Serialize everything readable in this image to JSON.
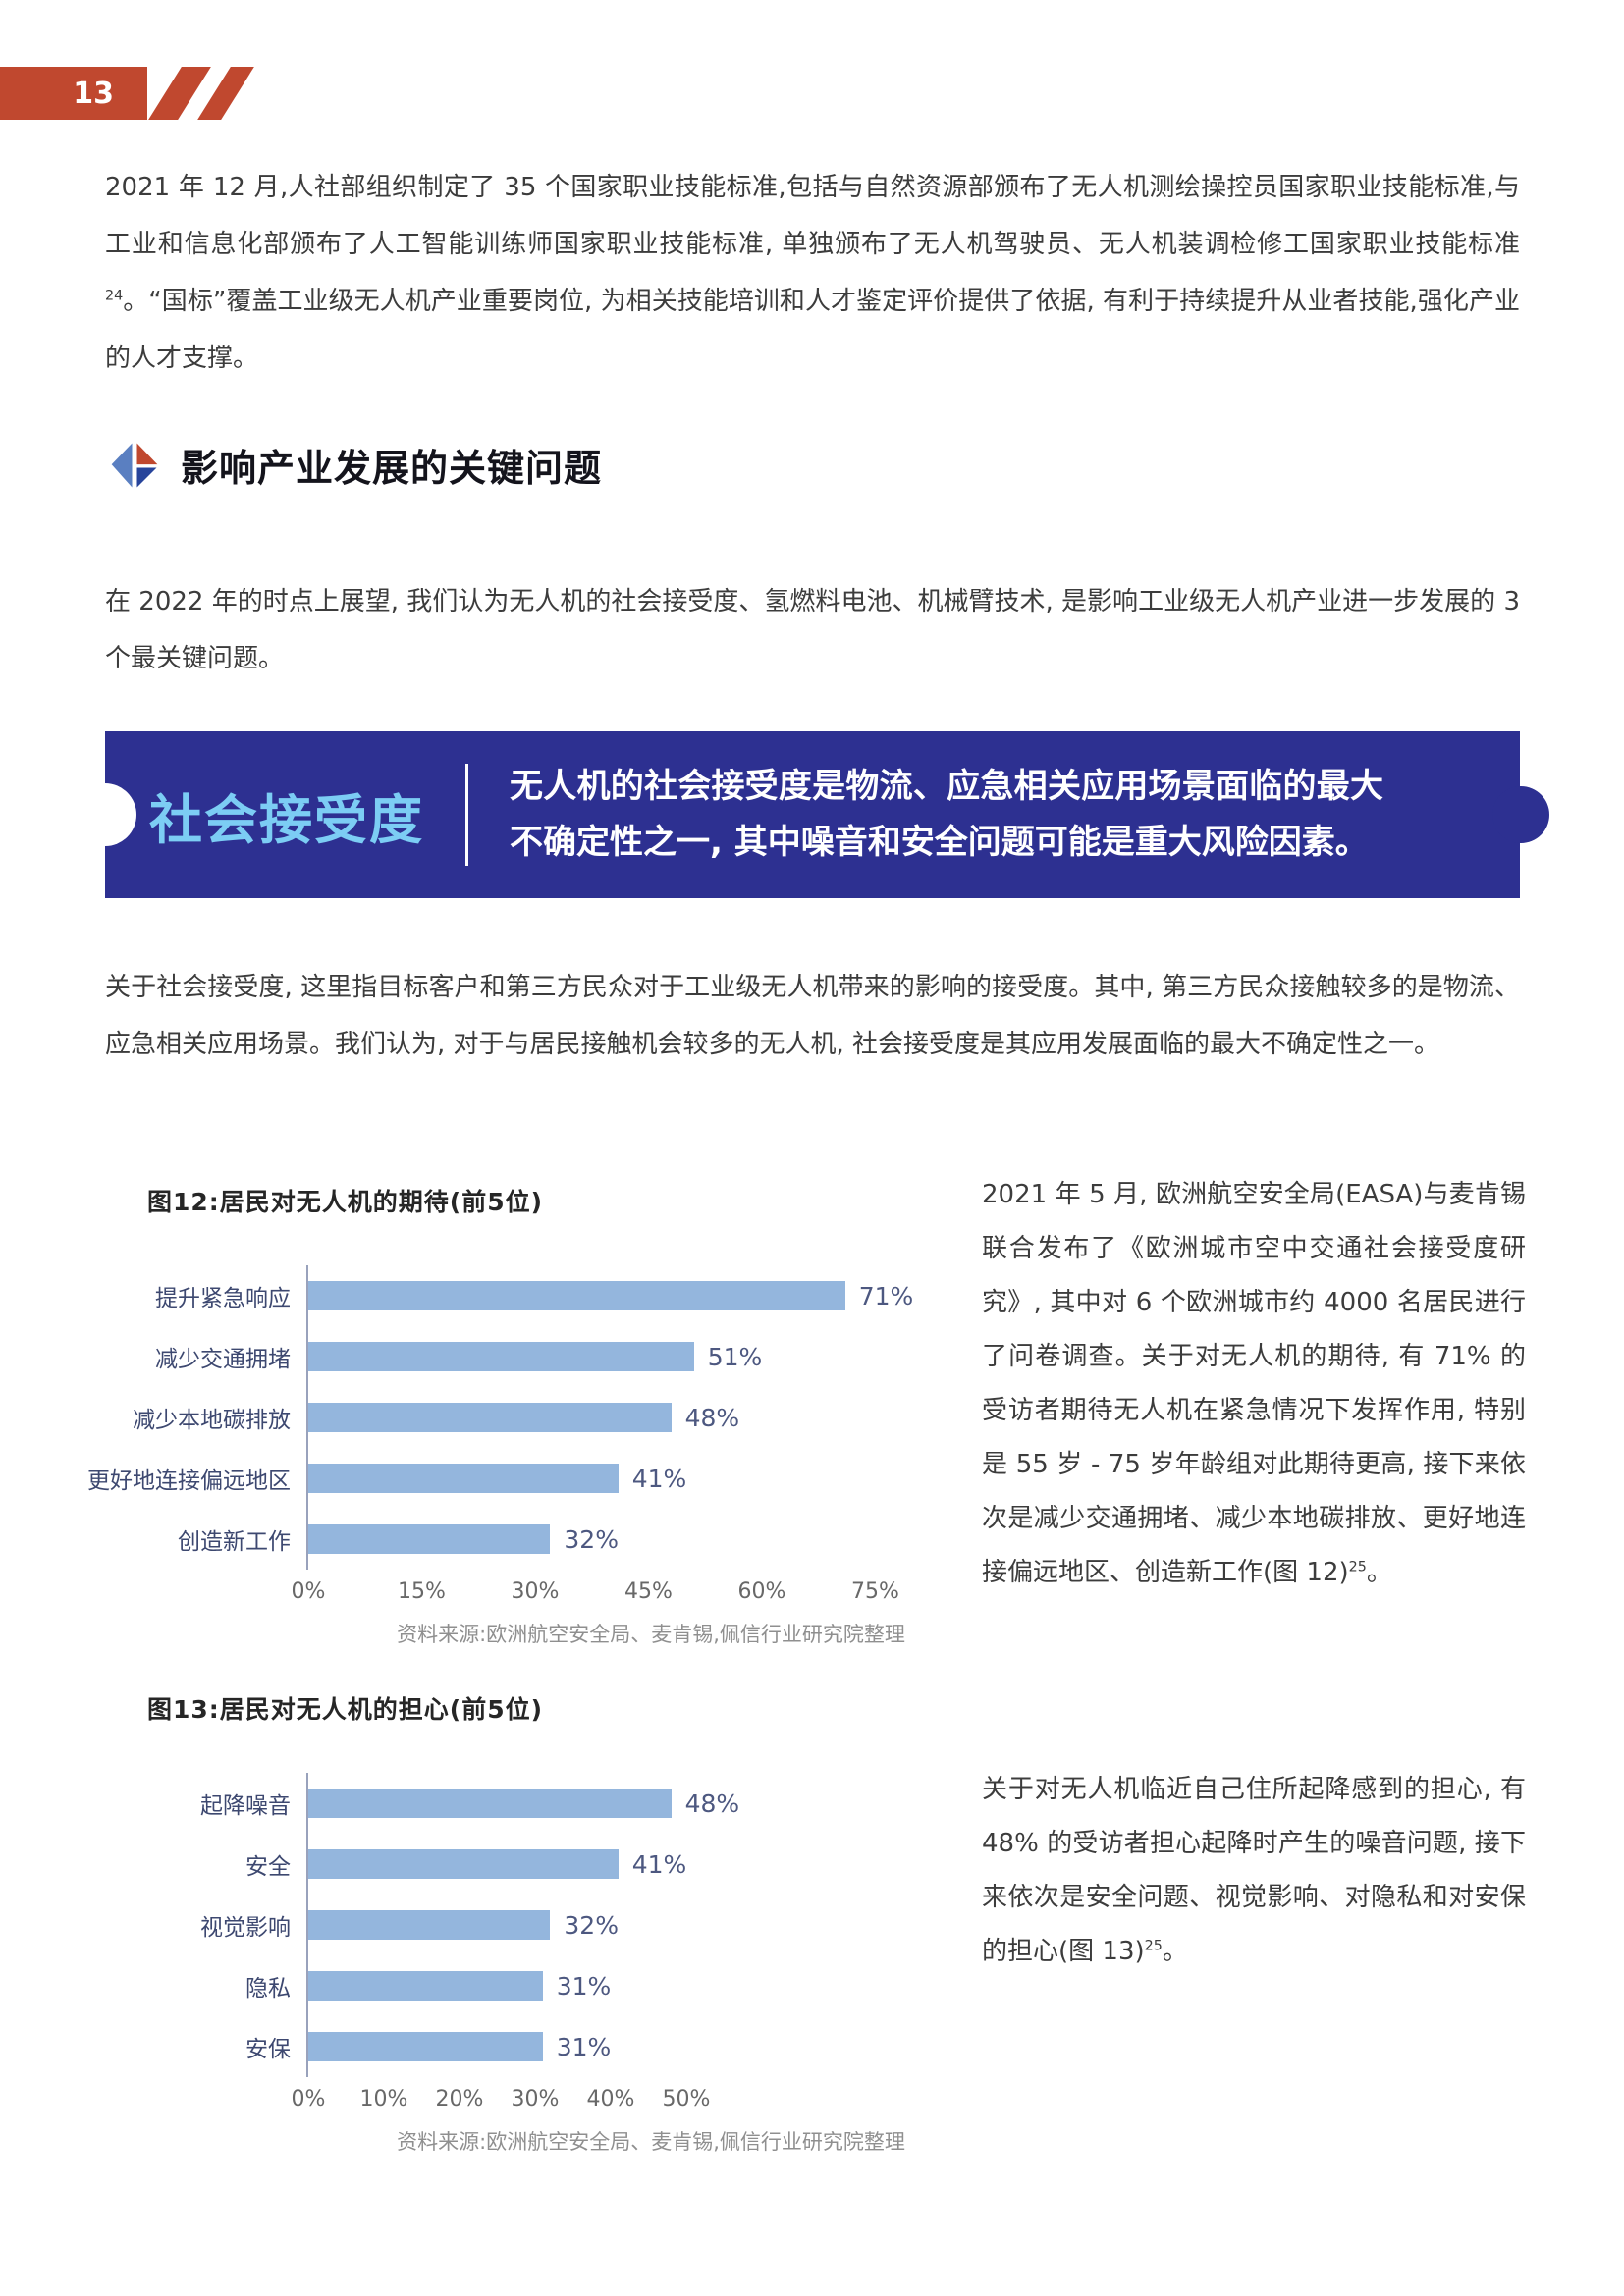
{
  "page_number": "13",
  "colors": {
    "accent_red": "#c0482f",
    "banner_blue": "#2d3091",
    "banner_label_blue": "#7ccdf4",
    "bar_blue": "#94b6dd"
  },
  "intro_paragraph": {
    "before_sup": "2021 年 12 月,人社部组织制定了 35 个国家职业技能标准,包括与自然资源部颁布了无人机测绘操控员国家职业技能标准,与工业和信息化部颁布了人工智能训练师国家职业技能标准, 单独颁布了无人机驾驶员、无人机装调检修工国家职业技能标准 ",
    "sup": "24",
    "after_sup": "。“国标”覆盖工业级无人机产业重要岗位, 为相关技能培训和人才鉴定评价提供了依据, 有利于持续提升从业者技能,强化产业的人才支撑。"
  },
  "section": {
    "title": "影响产业发展的关键问题",
    "lead": "在 2022 年的时点上展望, 我们认为无人机的社会接受度、氢燃料电池、机械臂技术, 是影响工业级无人机产业进一步发展的 3 个最关键问题。"
  },
  "banner": {
    "label": "社会接受度",
    "text": "无人机的社会接受度是物流、应急相关应用场景面临的最大不确定性之一, 其中噪音和安全问题可能是重大风险因素。"
  },
  "acceptance_paragraph": "关于社会接受度, 这里指目标客户和第三方民众对于工业级无人机带来的影响的接受度。其中, 第三方民众接触较多的是物流、应急相关应用场景。我们认为, 对于与居民接触机会较多的无人机, 社会接受度是其应用发展面临的最大不确定性之一。",
  "chart_data": [
    {
      "type": "bar",
      "orientation": "horizontal",
      "title": "图12:居民对无人机的期待(前5位)",
      "categories": [
        "提升紧急响应",
        "减少交通拥堵",
        "减少本地碳排放",
        "更好地连接偏远地区",
        "创造新工作"
      ],
      "values": [
        71,
        51,
        48,
        41,
        32
      ],
      "unit": "%",
      "xlim": [
        0,
        75
      ],
      "xticks": [
        0,
        15,
        30,
        45,
        60,
        75
      ],
      "grid": false,
      "source": "资料来源:欧洲航空安全局、麦肯锡,佩信行业研究院整理"
    },
    {
      "type": "bar",
      "orientation": "horizontal",
      "title": "图13:居民对无人机的担心(前5位)",
      "categories": [
        "起降噪音",
        "安全",
        "视觉影响",
        "隐私",
        "安保"
      ],
      "values": [
        48,
        41,
        32,
        31,
        31
      ],
      "unit": "%",
      "xlim": [
        0,
        50
      ],
      "xticks": [
        0,
        10,
        20,
        30,
        40,
        50
      ],
      "grid": false,
      "source": "资料来源:欧洲航空安全局、麦肯锡,佩信行业研究院整理"
    }
  ],
  "side_notes": [
    {
      "before_sup": "2021 年 5 月, 欧洲航空安全局(EASA)与麦肯锡联合发布了《欧洲城市空中交通社会接受度研究》, 其中对 6 个欧洲城市约 4000 名居民进行了问卷调查。关于对无人机的期待, 有 71% 的受访者期待无人机在紧急情况下发挥作用, 特别是 55 岁 - 75 岁年龄组对此期待更高, 接下来依次是减少交通拥堵、减少本地碳排放、更好地连接偏远地区、创造新工作(图 12)",
      "sup": "25",
      "after_sup": "。"
    },
    {
      "before_sup": "关于对无人机临近自己住所起降感到的担心, 有 48% 的受访者担心起降时产生的噪音问题, 接下来依次是安全问题、视觉影响、对隐私和对安保的担心(图 13)",
      "sup": "25",
      "after_sup": "。"
    }
  ]
}
